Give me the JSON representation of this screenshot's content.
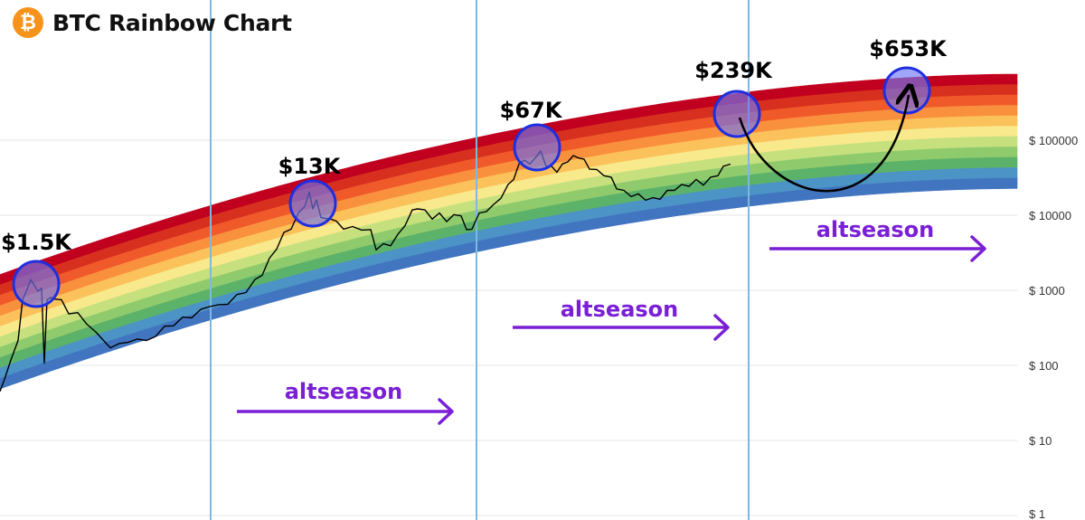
{
  "header": {
    "title": "BTC Rainbow Chart",
    "logo_glyph": "₿",
    "logo_color": "#F7931A"
  },
  "chart_data": {
    "type": "line",
    "title": "BTC Rainbow Chart",
    "y_scale": "log",
    "ylim": [
      1,
      1000000
    ],
    "y_ticks": [
      {
        "value": 100000,
        "label": "$ 100000"
      },
      {
        "value": 10000,
        "label": "$ 10000"
      },
      {
        "value": 1000,
        "label": "$ 1000"
      },
      {
        "value": 100,
        "label": "$ 100"
      },
      {
        "value": 10,
        "label": "$ 10"
      },
      {
        "value": 1,
        "label": "$ 1"
      }
    ],
    "grid": true,
    "rainbow_bands": [
      "#C1001F",
      "#D7301F",
      "#F05A2A",
      "#F9903E",
      "#FBC15A",
      "#F7E98C",
      "#C6E07E",
      "#8FCB6D",
      "#5DB26A",
      "#4C93C6",
      "#4275C0"
    ],
    "series": [
      {
        "values": [
          [
            0,
            45
          ],
          [
            5,
            70
          ],
          [
            12,
            110
          ],
          [
            20,
            230
          ],
          [
            25,
            700
          ],
          [
            30,
            1100
          ],
          [
            34,
            1300
          ],
          [
            38,
            1250
          ],
          [
            42,
            900
          ],
          [
            46,
            1150
          ],
          [
            49,
            100
          ],
          [
            52,
            800
          ],
          [
            56,
            750
          ],
          [
            60,
            820
          ],
          [
            68,
            700
          ],
          [
            76,
            520
          ],
          [
            86,
            470
          ],
          [
            96,
            380
          ],
          [
            106,
            260
          ],
          [
            116,
            220
          ],
          [
            122,
            160
          ],
          [
            132,
            210
          ],
          [
            142,
            190
          ],
          [
            152,
            240
          ],
          [
            162,
            200
          ],
          [
            172,
            260
          ],
          [
            182,
            310
          ],
          [
            192,
            360
          ],
          [
            202,
            410
          ],
          [
            212,
            460
          ],
          [
            222,
            520
          ],
          [
            232,
            650
          ],
          [
            242,
            600
          ],
          [
            252,
            700
          ],
          [
            262,
            820
          ],
          [
            272,
            1000
          ],
          [
            282,
            1300
          ],
          [
            290,
            1700
          ],
          [
            298,
            2500
          ],
          [
            306,
            3800
          ],
          [
            314,
            5500
          ],
          [
            322,
            7000
          ],
          [
            330,
            10000
          ],
          [
            337,
            14000
          ],
          [
            342,
            19000
          ],
          [
            346,
            13000
          ],
          [
            350,
            15000
          ],
          [
            355,
            10000
          ],
          [
            360,
            8500
          ],
          [
            366,
            9500
          ],
          [
            372,
            7800
          ],
          [
            380,
            7000
          ],
          [
            390,
            6600
          ],
          [
            400,
            6800
          ],
          [
            410,
            6000
          ],
          [
            416,
            3700
          ],
          [
            424,
            3900
          ],
          [
            432,
            4200
          ],
          [
            440,
            5200
          ],
          [
            448,
            7800
          ],
          [
            456,
            11000
          ],
          [
            462,
            13000
          ],
          [
            470,
            11000
          ],
          [
            478,
            9500
          ],
          [
            486,
            10000
          ],
          [
            494,
            8800
          ],
          [
            502,
            9500
          ],
          [
            510,
            10500
          ],
          [
            516,
            6000
          ],
          [
            522,
            7000
          ],
          [
            530,
            10000
          ],
          [
            538,
            12000
          ],
          [
            546,
            13000
          ],
          [
            554,
            18000
          ],
          [
            562,
            24000
          ],
          [
            568,
            32000
          ],
          [
            574,
            45000
          ],
          [
            580,
            58000
          ],
          [
            586,
            45000
          ],
          [
            592,
            62000
          ],
          [
            598,
            67000
          ],
          [
            604,
            48000
          ],
          [
            610,
            42000
          ],
          [
            616,
            40000
          ],
          [
            622,
            45000
          ],
          [
            628,
            55000
          ],
          [
            634,
            58000
          ],
          [
            640,
            62000
          ],
          [
            646,
            52000
          ],
          [
            652,
            44000
          ],
          [
            660,
            38000
          ],
          [
            668,
            36000
          ],
          [
            676,
            30000
          ],
          [
            682,
            24000
          ],
          [
            690,
            20000
          ],
          [
            698,
            19000
          ],
          [
            706,
            18000
          ],
          [
            714,
            17000
          ],
          [
            722,
            16000
          ],
          [
            730,
            17500
          ],
          [
            738,
            20000
          ],
          [
            746,
            23000
          ],
          [
            754,
            24000
          ],
          [
            762,
            26000
          ],
          [
            770,
            28000
          ],
          [
            778,
            27000
          ],
          [
            786,
            30000
          ],
          [
            794,
            36000
          ],
          [
            800,
            42000
          ],
          [
            808,
            48000
          ]
        ]
      }
    ],
    "annotations": {
      "peaks": [
        {
          "label": "$1.5K",
          "value": 1500
        },
        {
          "label": "$13K",
          "value": 13000
        },
        {
          "label": "$67K",
          "value": 67000
        },
        {
          "label": "$239K",
          "value": 239000
        },
        {
          "label": "$653K",
          "value": 653000
        }
      ],
      "altseason_label": "altseason",
      "altseason_count": 3
    },
    "colors": {
      "price_line": "#000000",
      "cycle_line": "#7FB8DE",
      "altseason": "#7A1FD6",
      "highlight_fill": "#6F78F5",
      "highlight_stroke": "#1E2FE0",
      "grid": "#E6E6E6"
    }
  }
}
